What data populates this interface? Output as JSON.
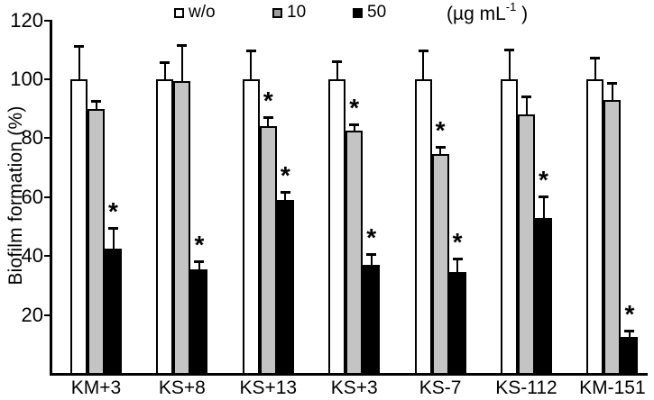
{
  "chart_data": {
    "type": "bar",
    "title": "",
    "xlabel": "",
    "ylabel": "Biofilm formation (%)",
    "ylim": [
      0,
      120
    ],
    "yticks": [
      20,
      40,
      60,
      80,
      100,
      120
    ],
    "grid": false,
    "legend": {
      "position": "top",
      "entries": [
        {
          "label": "w/o",
          "swatch_color": "#ffffff"
        },
        {
          "label": "10",
          "swatch_color": "#9e9e9e"
        },
        {
          "label": "50",
          "swatch_color": "#000000"
        }
      ],
      "units": {
        "prefix": "(µg mL",
        "sup": "-1",
        "suffix": ")"
      }
    },
    "categories": [
      "KM+3",
      "KS+8",
      "KS+13",
      "KS+3",
      "KS-7",
      "KS-112",
      "KM-151"
    ],
    "series": [
      {
        "name": "w/o",
        "color": "#ffffff",
        "values": [
          100,
          100,
          100,
          100,
          100,
          100,
          100
        ],
        "errors": [
          11.5,
          6,
          10,
          6.5,
          10,
          10.5,
          7.5
        ],
        "significant": [
          false,
          false,
          false,
          false,
          false,
          false,
          false
        ]
      },
      {
        "name": "10",
        "color": "#c4c4c4",
        "values": [
          90,
          99.5,
          84,
          82.5,
          74.5,
          88,
          93
        ],
        "errors": [
          3,
          12.5,
          3.5,
          2.5,
          3,
          6.5,
          6
        ],
        "significant": [
          false,
          false,
          true,
          true,
          true,
          false,
          false
        ]
      },
      {
        "name": "50",
        "color": "#000000",
        "values": [
          42.5,
          35.5,
          59,
          37,
          34.5,
          53,
          12.5
        ],
        "errors": [
          7.5,
          3,
          3,
          4,
          5,
          7.5,
          2.5
        ],
        "significant": [
          true,
          true,
          true,
          true,
          true,
          true,
          true
        ]
      }
    ],
    "significance_marker": "*"
  }
}
